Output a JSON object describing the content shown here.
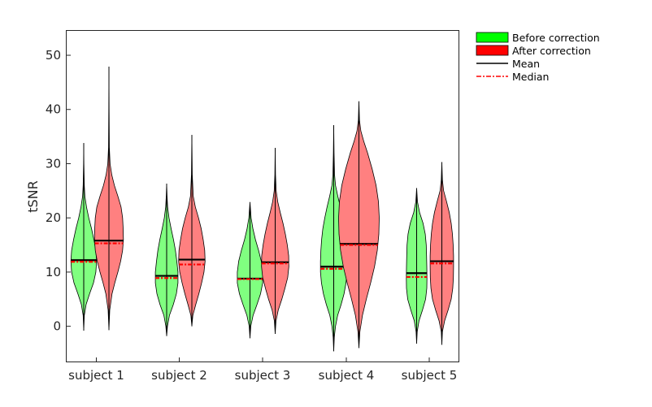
{
  "chart_data": {
    "type": "violin",
    "title": "",
    "xlabel": "",
    "ylabel": "tSNR",
    "ylim": [
      -6.5,
      54.5
    ],
    "yticks": [
      0,
      10,
      20,
      30,
      40,
      50
    ],
    "grid": false,
    "legend_position": "outside-top-right",
    "categories": [
      "subject 1",
      "subject 2",
      "subject 3",
      "subject 4",
      "subject 5"
    ],
    "legend": {
      "before": "Before correction",
      "after": "After correction",
      "mean": "Mean",
      "median": "Median"
    },
    "colors": {
      "before_fill": "#80ff80",
      "after_fill": "#ff8080",
      "before_legend": "#00ff00",
      "after_legend": "#ff0000",
      "mean_line": "#000000",
      "median_line": "#ff0000"
    },
    "series": [
      {
        "key": "before",
        "values": [
          {
            "min": -0.8,
            "max": 33.8,
            "mean": 12.2,
            "median": 11.9,
            "profile": [
              [
                -0.8,
                0
              ],
              [
                2,
                0.3
              ],
              [
                4,
                1.2
              ],
              [
                6,
                3.0
              ],
              [
                8,
                5.0
              ],
              [
                10,
                6.2
              ],
              [
                12,
                6.6
              ],
              [
                14,
                6.2
              ],
              [
                16,
                5.2
              ],
              [
                18,
                4.0
              ],
              [
                20,
                2.6
              ],
              [
                22,
                1.4
              ],
              [
                24,
                0.6
              ],
              [
                26,
                0.3
              ],
              [
                30,
                0.1
              ],
              [
                33.8,
                0
              ]
            ]
          },
          {
            "min": -1.8,
            "max": 26.3,
            "mean": 9.3,
            "median": 8.9,
            "profile": [
              [
                -1.8,
                0
              ],
              [
                0,
                0.4
              ],
              [
                2,
                1.4
              ],
              [
                4,
                3.4
              ],
              [
                6,
                5.0
              ],
              [
                8,
                5.8
              ],
              [
                10,
                5.8
              ],
              [
                12,
                5.2
              ],
              [
                14,
                4.5
              ],
              [
                16,
                3.5
              ],
              [
                18,
                2.3
              ],
              [
                20,
                1.2
              ],
              [
                22,
                0.5
              ],
              [
                24,
                0.2
              ],
              [
                26.3,
                0
              ]
            ]
          },
          {
            "min": -2.2,
            "max": 22.9,
            "mean": 8.8,
            "median": 8.7,
            "profile": [
              [
                -2.2,
                0
              ],
              [
                0,
                0.4
              ],
              [
                2,
                1.6
              ],
              [
                4,
                3.6
              ],
              [
                6,
                5.4
              ],
              [
                8,
                6.5
              ],
              [
                10,
                6.5
              ],
              [
                12,
                5.8
              ],
              [
                14,
                4.4
              ],
              [
                16,
                2.8
              ],
              [
                18,
                1.5
              ],
              [
                20,
                0.6
              ],
              [
                22.9,
                0
              ]
            ]
          },
          {
            "min": -4.6,
            "max": 37.1,
            "mean": 11.0,
            "median": 10.6,
            "profile": [
              [
                -4.6,
                0
              ],
              [
                -2,
                0.3
              ],
              [
                0,
                0.9
              ],
              [
                2,
                2.0
              ],
              [
                4,
                3.8
              ],
              [
                6,
                5.3
              ],
              [
                8,
                6.3
              ],
              [
                10,
                6.8
              ],
              [
                12,
                6.8
              ],
              [
                14,
                6.6
              ],
              [
                16,
                6.2
              ],
              [
                18,
                5.6
              ],
              [
                20,
                4.6
              ],
              [
                22,
                3.4
              ],
              [
                24,
                2.1
              ],
              [
                26,
                0.9
              ],
              [
                28,
                0.4
              ],
              [
                32,
                0.15
              ],
              [
                37.1,
                0
              ]
            ]
          },
          {
            "min": -3.2,
            "max": 25.5,
            "mean": 9.8,
            "median": 9.1,
            "profile": [
              [
                -3.2,
                0
              ],
              [
                -1,
                0.3
              ],
              [
                1,
                1.2
              ],
              [
                3,
                3.0
              ],
              [
                5,
                4.6
              ],
              [
                7,
                5.2
              ],
              [
                9,
                5.3
              ],
              [
                11,
                5.2
              ],
              [
                13,
                5.1
              ],
              [
                15,
                4.9
              ],
              [
                17,
                4.4
              ],
              [
                19,
                3.3
              ],
              [
                21,
                1.5
              ],
              [
                23,
                0.4
              ],
              [
                25.5,
                0
              ]
            ]
          }
        ]
      },
      {
        "key": "after",
        "values": [
          {
            "min": -0.7,
            "max": 47.9,
            "mean": 15.8,
            "median": 15.3,
            "profile": [
              [
                -0.7,
                0
              ],
              [
                3,
                0.4
              ],
              [
                6,
                1.6
              ],
              [
                8,
                3.0
              ],
              [
                10,
                4.6
              ],
              [
                12,
                6.0
              ],
              [
                14,
                7.0
              ],
              [
                16,
                7.4
              ],
              [
                18,
                7.3
              ],
              [
                20,
                7.0
              ],
              [
                22,
                6.2
              ],
              [
                24,
                4.6
              ],
              [
                26,
                2.8
              ],
              [
                28,
                1.4
              ],
              [
                30,
                0.6
              ],
              [
                33,
                0.2
              ],
              [
                40,
                0.08
              ],
              [
                47.9,
                0
              ]
            ]
          },
          {
            "min": 0.0,
            "max": 35.3,
            "mean": 12.3,
            "median": 11.4,
            "profile": [
              [
                0,
                0
              ],
              [
                2,
                0.5
              ],
              [
                4,
                2.0
              ],
              [
                6,
                3.6
              ],
              [
                8,
                5.0
              ],
              [
                10,
                6.2
              ],
              [
                12,
                6.8
              ],
              [
                14,
                6.6
              ],
              [
                16,
                5.8
              ],
              [
                18,
                4.8
              ],
              [
                20,
                3.4
              ],
              [
                22,
                1.8
              ],
              [
                24,
                0.7
              ],
              [
                28,
                0.2
              ],
              [
                35.3,
                0
              ]
            ]
          },
          {
            "min": -1.4,
            "max": 32.9,
            "mean": 11.8,
            "median": 11.6,
            "profile": [
              [
                -1.4,
                0
              ],
              [
                1,
                0.4
              ],
              [
                3,
                1.6
              ],
              [
                5,
                3.4
              ],
              [
                7,
                5.0
              ],
              [
                9,
                6.4
              ],
              [
                11,
                7.0
              ],
              [
                13,
                6.9
              ],
              [
                15,
                6.2
              ],
              [
                17,
                5.2
              ],
              [
                19,
                4.0
              ],
              [
                21,
                2.6
              ],
              [
                23,
                1.3
              ],
              [
                25,
                0.5
              ],
              [
                28,
                0.15
              ],
              [
                32.9,
                0
              ]
            ]
          },
          {
            "min": -4.0,
            "max": 41.5,
            "mean": 15.2,
            "median": 15.0,
            "profile": [
              [
                -4,
                0
              ],
              [
                -1,
                0.5
              ],
              [
                2,
                1.8
              ],
              [
                5,
                3.8
              ],
              [
                8,
                6.0
              ],
              [
                11,
                8.0
              ],
              [
                14,
                9.4
              ],
              [
                17,
                10.2
              ],
              [
                20,
                10.4
              ],
              [
                23,
                10.0
              ],
              [
                26,
                8.8
              ],
              [
                29,
                6.8
              ],
              [
                32,
                4.4
              ],
              [
                34,
                2.6
              ],
              [
                36,
                1.0
              ],
              [
                38,
                0.3
              ],
              [
                41.5,
                0
              ]
            ]
          },
          {
            "min": -3.4,
            "max": 30.3,
            "mean": 12.0,
            "median": 11.6,
            "profile": [
              [
                -3.4,
                0
              ],
              [
                -1,
                0.3
              ],
              [
                1,
                1.4
              ],
              [
                3,
                3.2
              ],
              [
                5,
                4.8
              ],
              [
                7,
                5.6
              ],
              [
                9,
                5.9
              ],
              [
                11,
                6.0
              ],
              [
                13,
                6.0
              ],
              [
                15,
                5.8
              ],
              [
                17,
                5.4
              ],
              [
                19,
                4.8
              ],
              [
                21,
                3.8
              ],
              [
                23,
                2.4
              ],
              [
                25,
                0.9
              ],
              [
                27,
                0.3
              ],
              [
                30.3,
                0
              ]
            ]
          }
        ]
      }
    ]
  }
}
